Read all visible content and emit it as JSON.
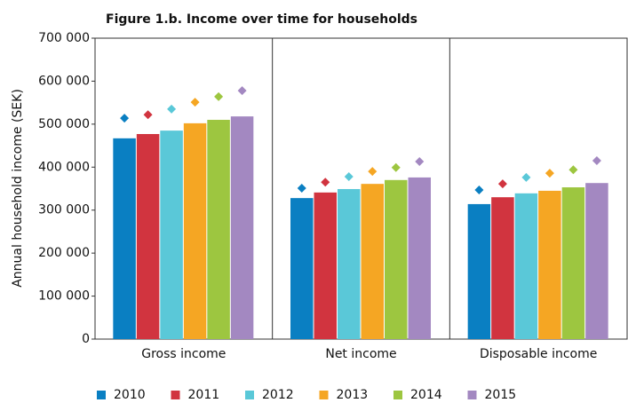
{
  "chart_data": {
    "type": "bar",
    "title": "Figure 1.b. Income over time for households",
    "y_label": "Annual household income (SEK)",
    "categories": [
      "Gross income",
      "Net income",
      "Disposable income"
    ],
    "series": [
      {
        "name": "2010",
        "color": "#0a7fc2",
        "values": [
          467000,
          328000,
          314000
        ],
        "markers": [
          514000,
          351000,
          347000
        ]
      },
      {
        "name": "2011",
        "color": "#d1343f",
        "values": [
          477000,
          341000,
          330000
        ],
        "markers": [
          522000,
          365000,
          361000
        ]
      },
      {
        "name": "2012",
        "color": "#5ac8d8",
        "values": [
          485000,
          349000,
          339000
        ],
        "markers": [
          535000,
          378000,
          376000
        ]
      },
      {
        "name": "2013",
        "color": "#f5a623",
        "values": [
          502000,
          361000,
          345000
        ],
        "markers": [
          551000,
          390000,
          386000
        ]
      },
      {
        "name": "2014",
        "color": "#9dc640",
        "values": [
          510000,
          370000,
          353000
        ],
        "markers": [
          564000,
          399000,
          394000
        ]
      },
      {
        "name": "2015",
        "color": "#a388c1",
        "values": [
          518000,
          376000,
          363000
        ],
        "markers": [
          578000,
          413000,
          415000
        ]
      }
    ],
    "ylim": [
      0,
      700000
    ],
    "yticks": [
      0,
      {
        "value": 100000,
        "label": "100 000"
      },
      {
        "value": 200000,
        "label": "200 000"
      },
      {
        "value": 300000,
        "label": "300 000"
      },
      {
        "value": 400000,
        "label": "400 000"
      },
      {
        "value": 500000,
        "label": "500 000"
      },
      {
        "value": 600000,
        "label": "600 000"
      },
      {
        "value": 700000,
        "label": "700 000"
      }
    ],
    "legend": "bottom"
  }
}
